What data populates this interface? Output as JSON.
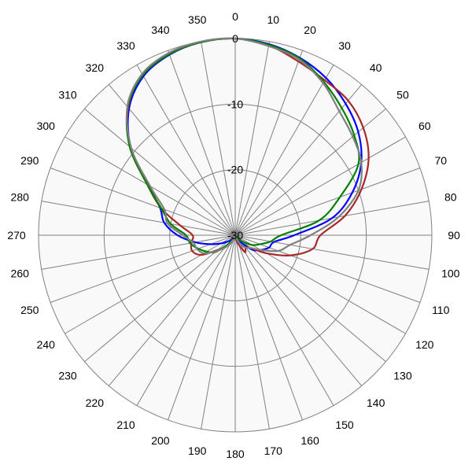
{
  "chart_data": {
    "type": "line",
    "subtype": "polar",
    "title": "",
    "angle_labels": [
      "0",
      "10",
      "20",
      "30",
      "40",
      "50",
      "60",
      "70",
      "80",
      "90",
      "100",
      "110",
      "120",
      "130",
      "140",
      "150",
      "160",
      "170",
      "180",
      "190",
      "200",
      "210",
      "220",
      "230",
      "240",
      "250",
      "260",
      "270",
      "280",
      "290",
      "300",
      "310",
      "320",
      "330",
      "340",
      "350"
    ],
    "angle_direction": "clockwise",
    "zero_at": "top",
    "radial_range": [
      -30,
      0
    ],
    "radial_ticks": [
      -30,
      -20,
      -10,
      0
    ],
    "radial_tick_labels": [
      "-30",
      "-20",
      "-10",
      "0"
    ],
    "grid": true,
    "background": "#f9f9f9",
    "series": [
      {
        "color": "#0000ff",
        "angles": [
          0,
          10,
          20,
          30,
          40,
          50,
          60,
          70,
          80,
          90,
          100,
          110,
          120,
          130,
          140,
          150,
          160,
          170,
          180,
          190,
          200,
          210,
          220,
          230,
          240,
          250,
          260,
          270,
          280,
          290,
          300,
          310,
          320,
          330,
          340,
          350
        ],
        "values": [
          0,
          -0.4,
          -1.2,
          -2.3,
          -3.8,
          -5.5,
          -7.8,
          -11,
          -15,
          -21,
          -24,
          -24.5,
          -25.5,
          -26.5,
          -28.5,
          -29.5,
          -30,
          -30,
          -30,
          -30,
          -29.8,
          -29.5,
          -29,
          -28.5,
          -27.5,
          -26,
          -23.8,
          -21.2,
          -19,
          -17.8,
          -14.7,
          -9.2,
          -4.8,
          -2,
          -0.7,
          -0.1
        ]
      },
      {
        "color": "#a52a2a",
        "angles": [
          0,
          10,
          20,
          30,
          40,
          50,
          60,
          70,
          80,
          90,
          100,
          110,
          120,
          130,
          140,
          150,
          160,
          170,
          180,
          190,
          200,
          210,
          220,
          230,
          240,
          250,
          260,
          270,
          280,
          290,
          300,
          310,
          320,
          330,
          340,
          350
        ],
        "values": [
          0,
          -0.6,
          -1.8,
          -2.7,
          -3.2,
          -4.5,
          -6.5,
          -9.5,
          -13,
          -17,
          -18,
          -21,
          -24.5,
          -27,
          -27.5,
          -27,
          -28.5,
          -29.5,
          -30,
          -30,
          -30,
          -29,
          -27.5,
          -26.5,
          -24,
          -23,
          -23.2,
          -23.5,
          -21.5,
          -18,
          -14.5,
          -9,
          -4.6,
          -1.7,
          -0.6,
          -0.1
        ]
      },
      {
        "color": "#008000",
        "angles": [
          0,
          10,
          20,
          30,
          40,
          50,
          60,
          70,
          80,
          90,
          100,
          110,
          120,
          130,
          140,
          150,
          160,
          170,
          180,
          190,
          200,
          210,
          220,
          230,
          240,
          250,
          260,
          270,
          280,
          290,
          300,
          310,
          320,
          330,
          340,
          350
        ],
        "values": [
          0,
          -0.5,
          -1.3,
          -3,
          -4.7,
          -6.3,
          -8.3,
          -13,
          -17,
          -23,
          -24.5,
          -26,
          -27,
          -28.5,
          -29.5,
          -29.8,
          -30,
          -30,
          -30,
          -29.8,
          -29.5,
          -29,
          -28,
          -26,
          -25,
          -24,
          -23,
          -22.5,
          -20,
          -18,
          -14.5,
          -9,
          -4.5,
          -1.8,
          -0.6,
          -0.1
        ]
      },
      {
        "color": "#808080",
        "angles": [
          0,
          10,
          20,
          30,
          40,
          50,
          60,
          70,
          80,
          90,
          100,
          110,
          120,
          130,
          140,
          150,
          160,
          170,
          180,
          190,
          200,
          210,
          220,
          230,
          240,
          250,
          260,
          270,
          280,
          290,
          300,
          310,
          320,
          330,
          340,
          350
        ],
        "values": [
          0,
          -0.7,
          -1.5,
          -3.2,
          -5.3,
          -6.6,
          -7.8,
          -10,
          -14,
          -18.5,
          -21.5,
          -23,
          -25.5,
          -27,
          -27.5,
          -28.5,
          -29.5,
          -30,
          -30,
          -30,
          -29.5,
          -28.5,
          -27.5,
          -26.2,
          -24.5,
          -23.8,
          -23.5,
          -22,
          -19.5,
          -18.5,
          -15,
          -9.3,
          -4.4,
          -1.6,
          -0.4,
          0
        ]
      }
    ]
  }
}
